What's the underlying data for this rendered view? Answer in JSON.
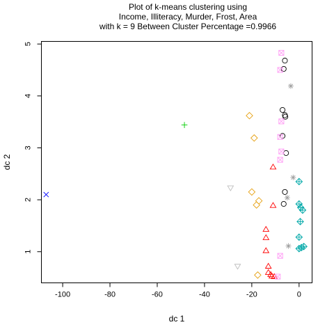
{
  "chart_data": {
    "type": "scatter",
    "title_lines": [
      "Plot of k-means clustering using",
      "Income, Illiteracy, Murder, Frost, Area",
      "with  k = 9 Between Cluster Percentage =0.9966"
    ],
    "xlabel": "dc 1",
    "ylabel": "dc 2",
    "xlim": [
      -109,
      5.5
    ],
    "ylim": [
      0.4,
      5.05
    ],
    "xticks": [
      -100,
      -80,
      -60,
      -40,
      -20,
      0
    ],
    "yticks": [
      1,
      2,
      3,
      4,
      5
    ],
    "grid": false,
    "legend": "none",
    "series": [
      {
        "marker": "circle",
        "color": "#000000",
        "points": [
          [
            -6,
            4.68
          ],
          [
            -6.5,
            4.52
          ],
          [
            -7,
            3.73
          ],
          [
            -6,
            3.63
          ],
          [
            -5.8,
            3.6
          ],
          [
            -7,
            3.23
          ],
          [
            -5.5,
            2.9
          ],
          [
            -6,
            2.15
          ],
          [
            -6.5,
            1.92
          ]
        ]
      },
      {
        "marker": "triangle-up",
        "color": "#ff0000",
        "points": [
          [
            -11,
            2.63
          ],
          [
            -11,
            1.89
          ],
          [
            -14,
            1.43
          ],
          [
            -14,
            1.27
          ],
          [
            -14,
            1.02
          ],
          [
            -13,
            0.72
          ],
          [
            -13,
            0.6
          ],
          [
            -12,
            0.56
          ],
          [
            -11.5,
            0.53
          ],
          [
            -10.5,
            0.52
          ]
        ]
      },
      {
        "marker": "plus",
        "color": "#00cd00",
        "points": [
          [
            -48.5,
            3.44
          ]
        ]
      },
      {
        "marker": "x",
        "color": "#0000ff",
        "points": [
          [
            -107,
            2.1
          ]
        ]
      },
      {
        "marker": "diamond-plus",
        "color": "#00a8a8",
        "points": [
          [
            0,
            2.35
          ],
          [
            0,
            1.92
          ],
          [
            0.7,
            1.85
          ],
          [
            1.5,
            1.8
          ],
          [
            0.5,
            1.58
          ],
          [
            0,
            1.28
          ],
          [
            2,
            1.1
          ],
          [
            1,
            1.08
          ],
          [
            0,
            1.06
          ]
        ]
      },
      {
        "marker": "diamond",
        "color": "#e6a010",
        "points": [
          [
            -21,
            3.62
          ],
          [
            -19,
            3.19
          ],
          [
            -20,
            2.15
          ],
          [
            -17,
            1.98
          ],
          [
            -18,
            1.9
          ],
          [
            -17.5,
            0.55
          ]
        ]
      },
      {
        "marker": "triangle-down",
        "color": "#bebebe",
        "points": [
          [
            -29,
            2.23
          ],
          [
            -26,
            0.72
          ]
        ]
      },
      {
        "marker": "asterisk",
        "color": "#9e9e9e",
        "points": [
          [
            -3.5,
            4.19
          ],
          [
            -2.5,
            2.43
          ],
          [
            -5,
            2.04
          ],
          [
            -4.5,
            1.11
          ]
        ]
      },
      {
        "marker": "square-x",
        "color": "#ff9ef5",
        "points": [
          [
            -7.5,
            4.83
          ],
          [
            -8,
            4.5
          ],
          [
            -7.5,
            3.51
          ],
          [
            -8,
            3.21
          ],
          [
            -7.5,
            2.93
          ],
          [
            -8,
            2.77
          ],
          [
            -8,
            0.92
          ],
          [
            -9,
            0.52
          ]
        ]
      }
    ]
  }
}
